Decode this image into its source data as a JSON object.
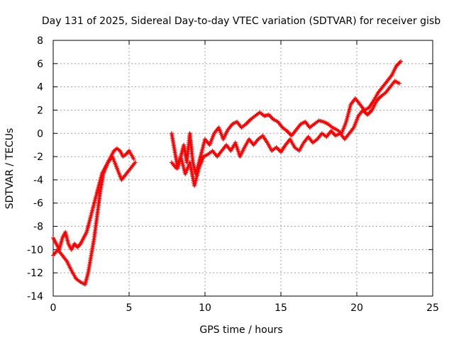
{
  "chart_data": {
    "type": "scatter",
    "title": "Day 131 of 2025, Sidereal Day-to-day VTEC variation (SDTVAR) for receiver gisb",
    "xlabel": "GPS time / hours",
    "ylabel": "SDTVAR / TECUs",
    "xlim": [
      0,
      25
    ],
    "ylim": [
      -14,
      8
    ],
    "x_ticks": [
      0,
      5,
      10,
      15,
      20,
      25
    ],
    "y_ticks": [
      -14,
      -12,
      -10,
      -8,
      -6,
      -4,
      -2,
      0,
      2,
      4,
      6,
      8
    ],
    "x_tick_labels": [
      "0",
      "5",
      "10",
      "15",
      "20",
      "25"
    ],
    "y_tick_labels": [
      "-14",
      "-12",
      "-10",
      "-8",
      "-6",
      "-4",
      "-2",
      "0",
      "2",
      "4",
      "6",
      "8"
    ],
    "grid": true,
    "marker": "+",
    "series": [
      {
        "name": "trace-1",
        "color": "#ff0000",
        "x": [
          0.0,
          0.2,
          0.4,
          0.6,
          0.8,
          1.0,
          1.2,
          1.4,
          1.6,
          1.8,
          2.0,
          2.2,
          2.4,
          2.6,
          2.8,
          3.0,
          3.2,
          3.4,
          3.6,
          3.8,
          4.0,
          4.2,
          4.4,
          4.6,
          4.8,
          5.0,
          5.3
        ],
        "y": [
          -9.0,
          -9.5,
          -10.0,
          -9.0,
          -8.5,
          -9.5,
          -10.0,
          -9.5,
          -9.8,
          -9.5,
          -9.0,
          -8.5,
          -7.5,
          -6.5,
          -5.5,
          -4.5,
          -3.5,
          -3.0,
          -2.5,
          -2.0,
          -1.5,
          -1.3,
          -1.5,
          -2.0,
          -1.8,
          -1.5,
          -2.2
        ]
      },
      {
        "name": "trace-2",
        "color": "#ff0000",
        "x": [
          0.0,
          0.3,
          0.6,
          0.9,
          1.2,
          1.5,
          1.8,
          2.1,
          2.3,
          2.5,
          2.7,
          2.9,
          3.1,
          3.3,
          3.6,
          3.9,
          4.2,
          4.5,
          4.8,
          5.1,
          5.4
        ],
        "y": [
          -10.5,
          -10.0,
          -10.5,
          -11.0,
          -11.8,
          -12.5,
          -12.8,
          -13.0,
          -12.0,
          -10.5,
          -9.0,
          -7.0,
          -5.0,
          -3.5,
          -2.5,
          -2.0,
          -3.0,
          -4.0,
          -3.5,
          -3.0,
          -2.5
        ]
      },
      {
        "name": "trace-3",
        "color": "#ff0000",
        "x": [
          7.8,
          8.0,
          8.2,
          8.4,
          8.6,
          8.8,
          9.0,
          9.2,
          9.4,
          9.6,
          9.8,
          10.0,
          10.3,
          10.6,
          10.9,
          11.2,
          11.5,
          11.8,
          12.1,
          12.4,
          12.7,
          13.0,
          13.3,
          13.6,
          13.9,
          14.2,
          14.5,
          14.8,
          15.1,
          15.4,
          15.7,
          16.0,
          16.3,
          16.6,
          16.9,
          17.2,
          17.5,
          17.8,
          18.1,
          18.4,
          18.7,
          19.0,
          19.3,
          19.6,
          19.9,
          20.2,
          20.5,
          20.8,
          21.1,
          21.4,
          21.7,
          22.0,
          22.3,
          22.6,
          22.9
        ],
        "y": [
          0.0,
          -1.5,
          -3.0,
          -2.0,
          -1.0,
          -2.5,
          0.0,
          -2.5,
          -3.5,
          -2.5,
          -1.5,
          -0.5,
          -1.0,
          0.0,
          0.5,
          -0.5,
          0.3,
          0.8,
          1.0,
          0.5,
          0.8,
          1.2,
          1.5,
          1.8,
          1.5,
          1.6,
          1.2,
          1.0,
          0.5,
          0.2,
          -0.2,
          0.3,
          0.8,
          1.0,
          0.5,
          0.8,
          1.1,
          1.0,
          0.8,
          0.5,
          0.3,
          0.0,
          1.0,
          2.5,
          3.0,
          2.5,
          2.0,
          2.2,
          2.8,
          3.5,
          4.0,
          4.5,
          5.0,
          5.8,
          6.2
        ]
      },
      {
        "name": "trace-4",
        "color": "#ff0000",
        "x": [
          7.8,
          8.1,
          8.4,
          8.7,
          9.0,
          9.3,
          9.6,
          9.9,
          10.2,
          10.5,
          10.8,
          11.1,
          11.4,
          11.7,
          12.0,
          12.3,
          12.6,
          12.9,
          13.2,
          13.5,
          13.8,
          14.1,
          14.4,
          14.7,
          15.0,
          15.3,
          15.6,
          15.9,
          16.2,
          16.5,
          16.8,
          17.1,
          17.4,
          17.7,
          18.0,
          18.3,
          18.6,
          18.9,
          19.2,
          19.5,
          19.8,
          20.1,
          20.4,
          20.7,
          21.0,
          21.3,
          21.6,
          21.9,
          22.2,
          22.5,
          22.8
        ],
        "y": [
          -2.5,
          -3.0,
          -2.0,
          -3.5,
          -2.5,
          -4.5,
          -3.0,
          -2.0,
          -1.8,
          -1.5,
          -2.0,
          -1.5,
          -1.0,
          -1.5,
          -0.8,
          -2.0,
          -1.2,
          -0.5,
          -1.0,
          -0.5,
          -0.2,
          -0.8,
          -1.5,
          -1.2,
          -1.6,
          -1.0,
          -0.5,
          -1.2,
          -1.5,
          -0.8,
          -0.3,
          -0.8,
          -0.5,
          0.0,
          -0.3,
          0.2,
          -0.2,
          0.0,
          -0.5,
          0.0,
          0.5,
          1.5,
          2.0,
          1.6,
          2.0,
          2.8,
          3.2,
          3.5,
          4.0,
          4.5,
          4.3
        ]
      }
    ]
  }
}
